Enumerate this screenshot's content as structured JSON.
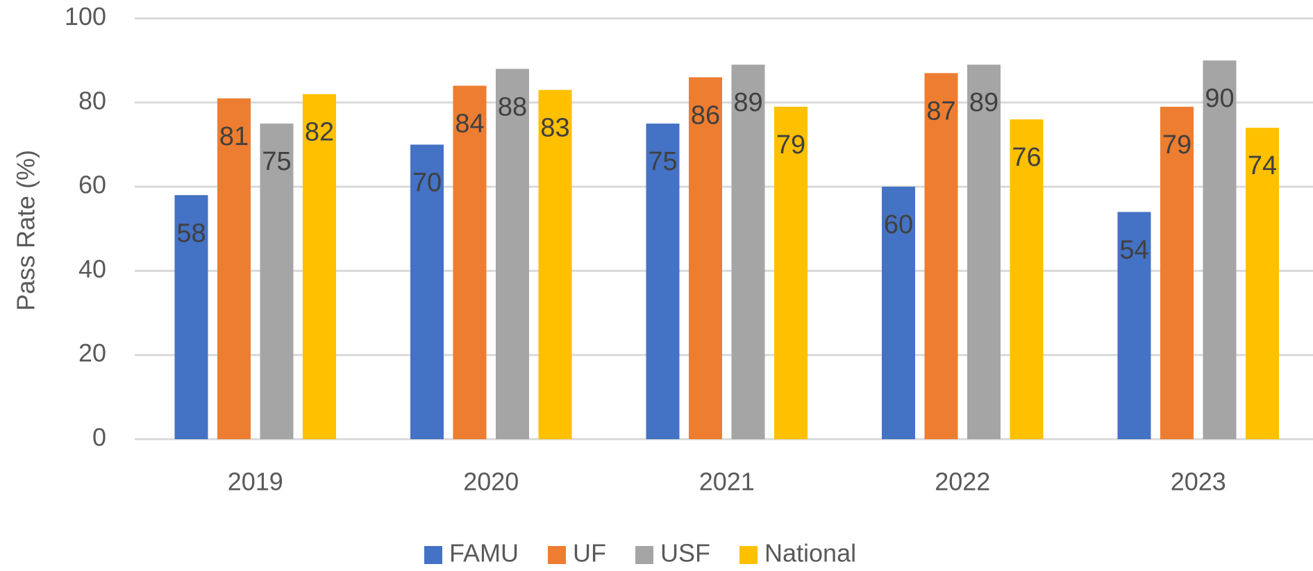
{
  "chart_data": {
    "type": "bar",
    "y_axis_label": "Pass Rate (%)",
    "categories": [
      "2019",
      "2020",
      "2021",
      "2022",
      "2023"
    ],
    "series": [
      {
        "name": "FAMU",
        "color": "#4472c4",
        "values": [
          58,
          70,
          75,
          60,
          54
        ]
      },
      {
        "name": "UF",
        "color": "#ed7d31",
        "values": [
          81,
          84,
          86,
          87,
          79
        ]
      },
      {
        "name": "USF",
        "color": "#a5a5a5",
        "values": [
          75,
          88,
          89,
          89,
          90
        ]
      },
      {
        "name": "National",
        "color": "#ffc000",
        "values": [
          82,
          83,
          79,
          76,
          74
        ]
      }
    ],
    "ylim": [
      0,
      100
    ],
    "yticks": [
      0,
      20,
      40,
      60,
      80,
      100
    ],
    "grid": true,
    "legend": "bottom"
  }
}
